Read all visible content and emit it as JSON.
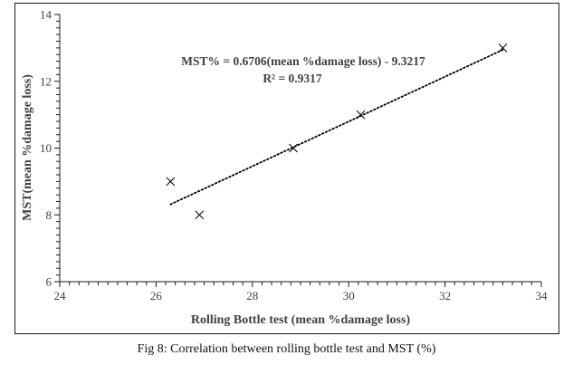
{
  "chart_data": {
    "type": "scatter",
    "title": "",
    "xlabel": "Rolling Bottle test (mean %damage loss)",
    "ylabel": "MST(mean %damage loss)",
    "xlim": [
      24,
      34
    ],
    "ylim": [
      6,
      14
    ],
    "xticks": [
      "24",
      "26",
      "28",
      "30",
      "32",
      "34"
    ],
    "yticks": [
      "6",
      "8",
      "10",
      "12",
      "14"
    ],
    "series": [
      {
        "marker": "x",
        "color": "#000000",
        "points": [
          {
            "x": 26.3,
            "y": 9.0
          },
          {
            "x": 26.9,
            "y": 8.0
          },
          {
            "x": 28.85,
            "y": 10.0
          },
          {
            "x": 30.25,
            "y": 11.0
          },
          {
            "x": 33.2,
            "y": 13.0
          }
        ]
      }
    ],
    "trendline": {
      "style": "dotted",
      "type": "linear",
      "slope": 0.6706,
      "intercept": -9.3217,
      "x_range": [
        26.3,
        33.2
      ],
      "equation": "MST% = 0.6706(mean %damage loss) - 9.3217",
      "r2_label": "R² = 0.9317"
    },
    "grid": false
  },
  "caption": "Fig 8: Correlation between rolling bottle test and MST (%)"
}
